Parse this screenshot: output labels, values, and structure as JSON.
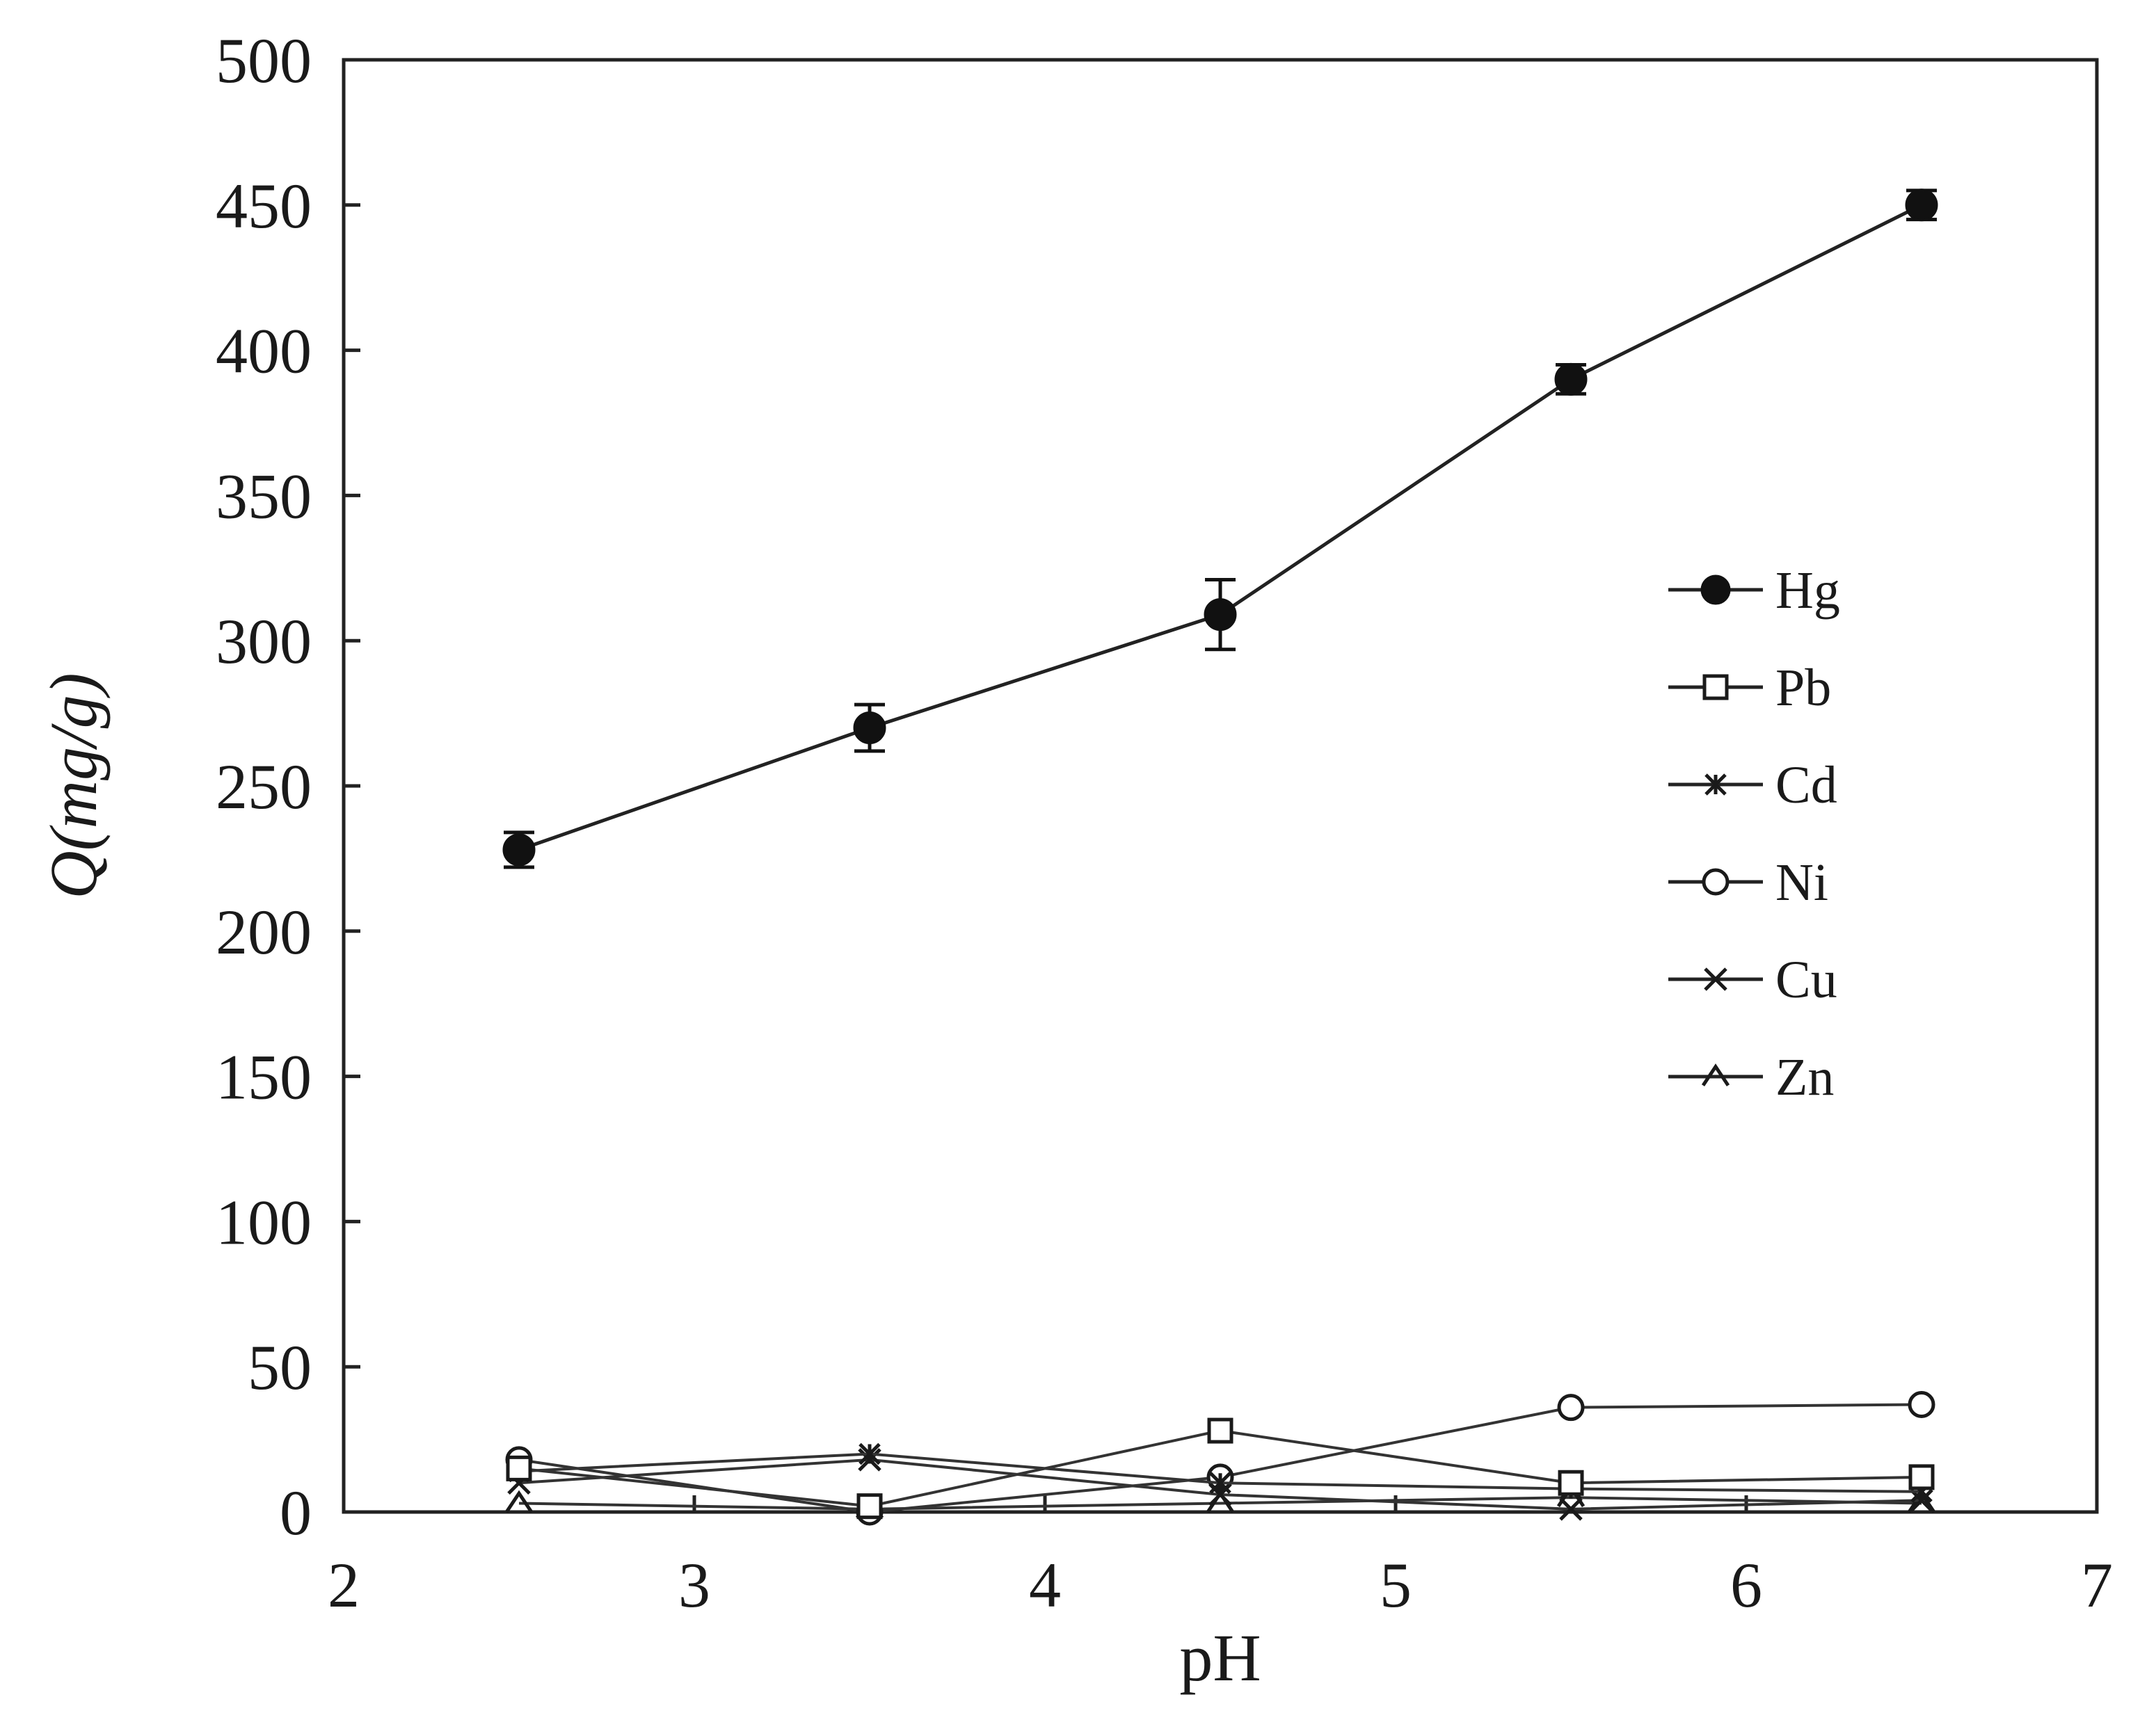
{
  "chart_data": {
    "type": "line",
    "title": "",
    "xlabel": "pH",
    "ylabel": "Q(mg/g)",
    "xlim": [
      2,
      7
    ],
    "ylim": [
      0,
      500
    ],
    "xticks": [
      2,
      3,
      4,
      5,
      6,
      7
    ],
    "yticks": [
      0,
      50,
      100,
      150,
      200,
      250,
      300,
      350,
      400,
      450,
      500
    ],
    "x": [
      2.5,
      3.5,
      4.5,
      5.5,
      6.5
    ],
    "legend_position": "right-middle",
    "series": [
      {
        "name": "Hg",
        "marker": "filled-circle",
        "values": [
          228,
          270,
          309,
          390,
          450
        ],
        "errors": [
          6,
          8,
          12,
          5,
          5
        ]
      },
      {
        "name": "Pb",
        "marker": "open-square",
        "values": [
          15,
          2,
          28,
          10,
          12
        ]
      },
      {
        "name": "Cd",
        "marker": "star",
        "values": [
          14,
          20,
          10,
          8,
          7
        ]
      },
      {
        "name": "Ni",
        "marker": "open-circle",
        "values": [
          18,
          0,
          12,
          36,
          37
        ]
      },
      {
        "name": "Cu",
        "marker": "x",
        "values": [
          10,
          18,
          6,
          1,
          4
        ]
      },
      {
        "name": "Zn",
        "marker": "triangle-open",
        "values": [
          3,
          1,
          3,
          5,
          3
        ]
      }
    ]
  }
}
